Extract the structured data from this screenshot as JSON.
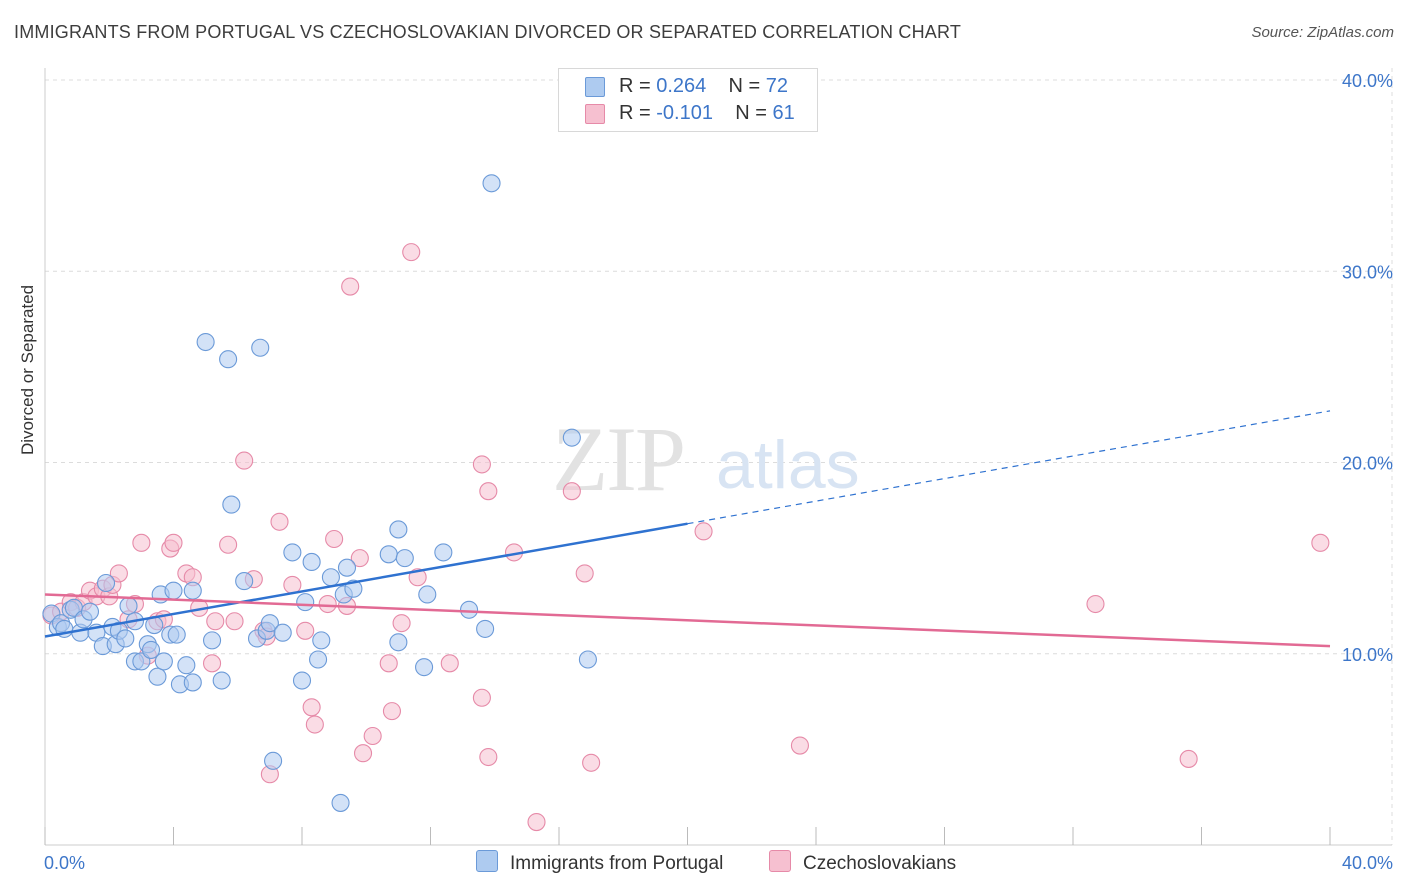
{
  "title": "IMMIGRANTS FROM PORTUGAL VS CZECHOSLOVAKIAN DIVORCED OR SEPARATED CORRELATION CHART",
  "source": "Source: ZipAtlas.com",
  "watermark": {
    "zip": "ZIP",
    "atlas": "atlas"
  },
  "legend": {
    "rows": [
      {
        "r_label": "R = ",
        "r_value": "0.264",
        "n_label": "N = ",
        "n_value": "72"
      },
      {
        "r_label": "R = ",
        "r_value": "-0.101",
        "n_label": "N = ",
        "n_value": "61"
      }
    ]
  },
  "colors": {
    "blue_fill": "#aecbf0",
    "blue_stroke": "#6b9ad8",
    "blue_line": "#2f72d0",
    "pink_fill": "#f6c0d0",
    "pink_stroke": "#e68aa8",
    "pink_line": "#e26a94",
    "axis_label": "#3d76c9",
    "grid": "#dcdcdc"
  },
  "chart_data": {
    "type": "scatter",
    "ylabel": "Divorced or Separated",
    "xlim": [
      0,
      40
    ],
    "ylim": [
      0,
      40
    ],
    "x_tick_labels": [
      "0.0%",
      "40.0%"
    ],
    "y_ticks": [
      10,
      20,
      30,
      40
    ],
    "y_tick_labels": [
      "10.0%",
      "20.0%",
      "30.0%",
      "40.0%"
    ],
    "series": [
      {
        "name": "Immigrants from Portugal",
        "color": "blue",
        "trend": {
          "x0": 0,
          "y0": 10.9,
          "x1": 20,
          "y1": 16.8,
          "x_end": 40,
          "y_end": 22.7
        },
        "points": [
          [
            0.2,
            12.1
          ],
          [
            0.4,
            11.4
          ],
          [
            0.5,
            11.6
          ],
          [
            0.6,
            11.3
          ],
          [
            0.8,
            12.3
          ],
          [
            0.9,
            12.4
          ],
          [
            1.1,
            11.1
          ],
          [
            1.2,
            11.8
          ],
          [
            1.4,
            12.2
          ],
          [
            1.6,
            11.1
          ],
          [
            1.8,
            10.4
          ],
          [
            1.9,
            13.7
          ],
          [
            2.1,
            11.4
          ],
          [
            2.2,
            10.5
          ],
          [
            2.3,
            11.2
          ],
          [
            2.5,
            10.8
          ],
          [
            2.6,
            12.5
          ],
          [
            2.8,
            9.6
          ],
          [
            2.8,
            11.7
          ],
          [
            3.0,
            9.6
          ],
          [
            3.2,
            10.5
          ],
          [
            3.3,
            10.2
          ],
          [
            3.4,
            11.5
          ],
          [
            3.5,
            8.8
          ],
          [
            3.6,
            13.1
          ],
          [
            3.7,
            9.6
          ],
          [
            3.9,
            11.0
          ],
          [
            4.0,
            13.3
          ],
          [
            4.1,
            11.0
          ],
          [
            4.2,
            8.4
          ],
          [
            4.4,
            9.4
          ],
          [
            4.6,
            8.5
          ],
          [
            4.6,
            13.3
          ],
          [
            5.0,
            26.3
          ],
          [
            5.2,
            10.7
          ],
          [
            5.5,
            8.6
          ],
          [
            5.7,
            25.4
          ],
          [
            5.8,
            17.8
          ],
          [
            6.2,
            13.8
          ],
          [
            6.6,
            10.8
          ],
          [
            6.7,
            26.0
          ],
          [
            6.9,
            11.2
          ],
          [
            7.0,
            11.6
          ],
          [
            7.1,
            4.4
          ],
          [
            7.4,
            11.1
          ],
          [
            7.7,
            15.3
          ],
          [
            8.0,
            8.6
          ],
          [
            8.1,
            12.7
          ],
          [
            8.3,
            14.8
          ],
          [
            8.5,
            9.7
          ],
          [
            8.6,
            10.7
          ],
          [
            8.9,
            14.0
          ],
          [
            9.2,
            2.2
          ],
          [
            9.3,
            13.1
          ],
          [
            9.4,
            14.5
          ],
          [
            9.6,
            13.4
          ],
          [
            10.7,
            15.2
          ],
          [
            11.0,
            10.6
          ],
          [
            11.0,
            16.5
          ],
          [
            11.2,
            15.0
          ],
          [
            11.8,
            9.3
          ],
          [
            11.9,
            13.1
          ],
          [
            12.4,
            15.3
          ],
          [
            13.2,
            12.3
          ],
          [
            13.7,
            11.3
          ],
          [
            13.9,
            34.6
          ],
          [
            16.4,
            21.3
          ],
          [
            16.9,
            9.7
          ]
        ]
      },
      {
        "name": "Czechoslovakians",
        "color": "pink",
        "trend": {
          "x0": 0,
          "y0": 13.1,
          "x1": 40,
          "y1": 10.4
        },
        "points": [
          [
            0.2,
            12.0
          ],
          [
            0.5,
            12.2
          ],
          [
            0.8,
            12.7
          ],
          [
            1.0,
            12.4
          ],
          [
            1.2,
            12.7
          ],
          [
            1.4,
            13.3
          ],
          [
            1.6,
            13.0
          ],
          [
            1.8,
            13.4
          ],
          [
            2.0,
            13.0
          ],
          [
            2.1,
            13.6
          ],
          [
            2.3,
            14.2
          ],
          [
            2.6,
            11.8
          ],
          [
            2.8,
            12.6
          ],
          [
            3.0,
            15.8
          ],
          [
            3.2,
            9.9
          ],
          [
            3.5,
            11.7
          ],
          [
            3.7,
            11.8
          ],
          [
            3.9,
            15.5
          ],
          [
            4.0,
            15.8
          ],
          [
            4.4,
            14.2
          ],
          [
            4.6,
            14.0
          ],
          [
            4.8,
            12.4
          ],
          [
            5.2,
            9.5
          ],
          [
            5.3,
            11.7
          ],
          [
            5.7,
            15.7
          ],
          [
            5.9,
            11.7
          ],
          [
            6.2,
            20.1
          ],
          [
            6.5,
            13.9
          ],
          [
            6.8,
            11.2
          ],
          [
            6.9,
            10.9
          ],
          [
            7.0,
            3.7
          ],
          [
            7.3,
            16.9
          ],
          [
            7.7,
            13.6
          ],
          [
            8.1,
            11.2
          ],
          [
            8.3,
            7.2
          ],
          [
            8.4,
            6.3
          ],
          [
            8.8,
            12.6
          ],
          [
            9.0,
            16.0
          ],
          [
            9.4,
            12.5
          ],
          [
            9.5,
            29.2
          ],
          [
            9.8,
            15.0
          ],
          [
            9.9,
            4.8
          ],
          [
            10.2,
            5.7
          ],
          [
            10.7,
            9.5
          ],
          [
            10.8,
            7.0
          ],
          [
            11.1,
            11.6
          ],
          [
            11.6,
            14.0
          ],
          [
            11.4,
            31.0
          ],
          [
            12.6,
            9.5
          ],
          [
            13.6,
            19.9
          ],
          [
            13.8,
            18.5
          ],
          [
            13.6,
            7.7
          ],
          [
            13.8,
            4.6
          ],
          [
            14.6,
            15.3
          ],
          [
            15.3,
            1.2
          ],
          [
            16.4,
            18.5
          ],
          [
            16.8,
            14.2
          ],
          [
            17.0,
            4.3
          ],
          [
            20.5,
            16.4
          ],
          [
            23.5,
            5.2
          ],
          [
            32.7,
            12.6
          ],
          [
            35.6,
            4.5
          ],
          [
            39.7,
            15.8
          ]
        ]
      }
    ]
  }
}
